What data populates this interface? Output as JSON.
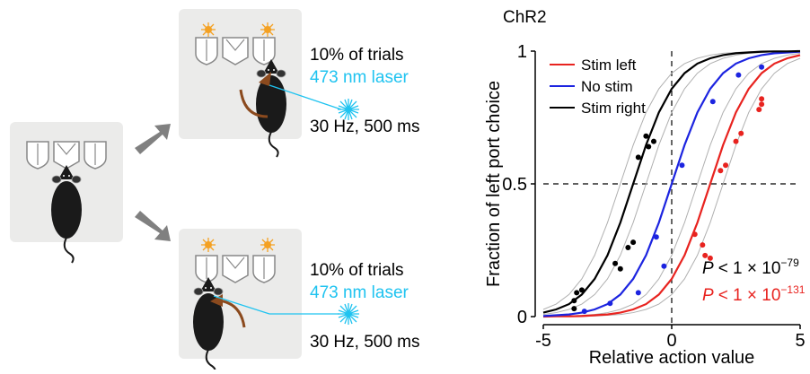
{
  "diagram": {
    "top": {
      "lines": [
        "10% of trials",
        "473 nm laser",
        "30 Hz, 500 ms"
      ]
    },
    "bottom": {
      "lines": [
        "10% of trials",
        "473 nm laser",
        "30 Hz, 500 ms"
      ]
    }
  },
  "chart_data": {
    "type": "scatter_fit",
    "title": "ChR2",
    "xlabel": "Relative action value",
    "ylabel": "Fraction of left port choice",
    "xlim": [
      -5,
      5
    ],
    "ylim": [
      0,
      1
    ],
    "xticks": [
      -5,
      0,
      5
    ],
    "yticks": [
      0,
      0.5,
      1
    ],
    "ref_x": 0,
    "ref_y": 0.5,
    "legend": "upper left",
    "fit_x": [
      -5,
      -4.5,
      -4,
      -3.5,
      -3,
      -2.5,
      -2,
      -1.5,
      -1,
      -0.5,
      0,
      0.5,
      1,
      1.5,
      2,
      2.5,
      3,
      3.5,
      4,
      4.5,
      5
    ],
    "individual_fits": {
      "color": "#b0b0b0",
      "fits": [
        [
          0.027,
          0.047,
          0.083,
          0.142,
          0.231,
          0.354,
          0.5,
          0.646,
          0.769,
          0.858,
          0.917,
          0.953,
          0.973,
          0.985,
          0.992,
          0.995,
          0.998,
          0.999,
          0.999,
          1.0,
          1.0
        ],
        [
          0.008,
          0.015,
          0.027,
          0.047,
          0.083,
          0.142,
          0.231,
          0.354,
          0.5,
          0.646,
          0.769,
          0.858,
          0.917,
          0.953,
          0.973,
          0.985,
          0.992,
          0.995,
          0.998,
          0.999,
          0.999
        ],
        [
          0.001,
          0.001,
          0.002,
          0.005,
          0.008,
          0.015,
          0.027,
          0.047,
          0.083,
          0.142,
          0.231,
          0.354,
          0.5,
          0.646,
          0.769,
          0.858,
          0.917,
          0.953,
          0.973,
          0.985,
          0.992
        ],
        [
          0.0,
          0.0,
          0.001,
          0.001,
          0.002,
          0.005,
          0.008,
          0.015,
          0.027,
          0.047,
          0.083,
          0.142,
          0.231,
          0.354,
          0.5,
          0.646,
          0.769,
          0.858,
          0.917,
          0.953,
          0.973
        ]
      ]
    },
    "series": [
      {
        "name": "Stim left",
        "color": "#e8231f",
        "x": [
          0.9,
          1.2,
          1.3,
          1.5,
          1.9,
          2.1,
          2.5,
          2.7,
          3.4,
          3.5,
          3.5
        ],
        "values": [
          0.31,
          0.27,
          0.23,
          0.22,
          0.55,
          0.57,
          0.66,
          0.69,
          0.78,
          0.8,
          0.82
        ],
        "fit": [
          0.0,
          0.001,
          0.001,
          0.002,
          0.005,
          0.008,
          0.015,
          0.027,
          0.047,
          0.083,
          0.142,
          0.231,
          0.354,
          0.5,
          0.646,
          0.769,
          0.858,
          0.917,
          0.953,
          0.973,
          0.985
        ]
      },
      {
        "name": "No stim",
        "color": "#1c24e0",
        "x": [
          -3.4,
          -2.4,
          -1.3,
          -0.6,
          -0.3,
          0.4,
          1.6,
          2.6,
          3.5
        ],
        "values": [
          0.02,
          0.05,
          0.09,
          0.3,
          0.19,
          0.57,
          0.81,
          0.91,
          0.94
        ],
        "fit": [
          0.002,
          0.005,
          0.008,
          0.015,
          0.027,
          0.047,
          0.083,
          0.142,
          0.231,
          0.354,
          0.5,
          0.646,
          0.769,
          0.858,
          0.917,
          0.953,
          0.973,
          0.985,
          0.992,
          0.995,
          0.998
        ]
      },
      {
        "name": "Stim right",
        "color": "#000000",
        "x": [
          -3.8,
          -3.7,
          -3.5,
          -3.8,
          -2.2,
          -2.0,
          -1.7,
          -1.5,
          -1.3,
          -1.0,
          -0.9,
          -0.7
        ],
        "values": [
          0.06,
          0.09,
          0.1,
          0.03,
          0.2,
          0.18,
          0.26,
          0.28,
          0.6,
          0.68,
          0.64,
          0.66
        ],
        "fit": [
          0.015,
          0.027,
          0.047,
          0.083,
          0.142,
          0.231,
          0.354,
          0.5,
          0.646,
          0.769,
          0.858,
          0.917,
          0.953,
          0.973,
          0.985,
          0.992,
          0.995,
          0.998,
          0.999,
          0.999,
          1.0
        ]
      }
    ],
    "annotations": [
      {
        "p": "P",
        "text": "< 1 × 10",
        "exp": "−79",
        "color": "#000000"
      },
      {
        "p": "P",
        "text": "< 1 × 10",
        "exp": "−131",
        "color": "#e8231f"
      }
    ]
  }
}
